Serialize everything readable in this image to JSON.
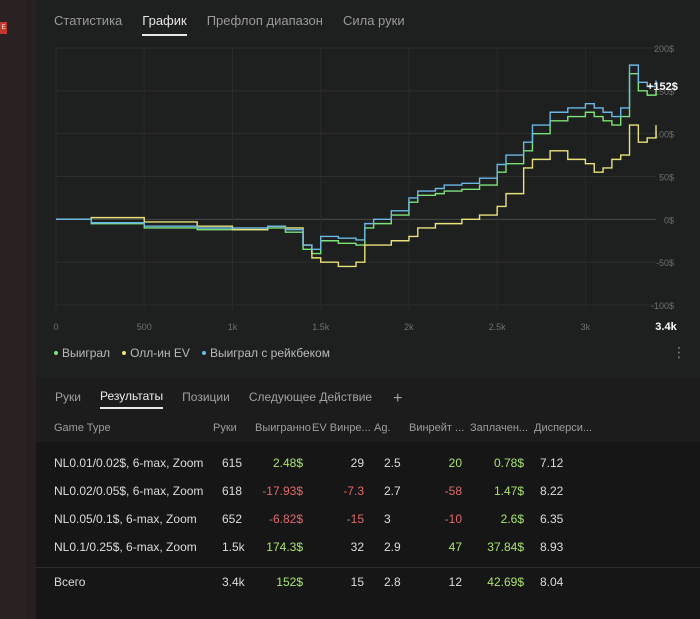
{
  "top_tabs": [
    {
      "label": "Статистика"
    },
    {
      "label": "График",
      "active": true
    },
    {
      "label": "Префлоп диапазон"
    },
    {
      "label": "Сила руки"
    }
  ],
  "left_badge": "E",
  "chart_data": {
    "type": "line",
    "x_ticks": [
      "0",
      "500",
      "1k",
      "1.5k",
      "2k",
      "2.5k",
      "3k",
      "3.4k"
    ],
    "y_ticks": [
      "200$",
      "150$",
      "100$",
      "50$",
      "0$",
      "-50$",
      "-100$"
    ],
    "ylim": [
      -100,
      200
    ],
    "xlim": [
      0,
      3400
    ],
    "end_label": "+152$",
    "grid": true,
    "series": [
      {
        "name": "Выиграл",
        "color": "#7ee27a",
        "x": [
          0,
          200,
          500,
          800,
          1000,
          1200,
          1300,
          1400,
          1450,
          1500,
          1600,
          1700,
          1750,
          1800,
          1900,
          2000,
          2050,
          2150,
          2200,
          2300,
          2400,
          2500,
          2550,
          2650,
          2700,
          2800,
          2900,
          3000,
          3050,
          3100,
          3150,
          3200,
          3250,
          3300,
          3350,
          3400
        ],
        "y": [
          0,
          -5,
          -10,
          -12,
          -12,
          -10,
          -15,
          -35,
          -40,
          -25,
          -28,
          -30,
          -10,
          -5,
          5,
          20,
          28,
          30,
          33,
          35,
          40,
          55,
          65,
          80,
          100,
          115,
          120,
          125,
          120,
          115,
          110,
          120,
          170,
          150,
          145,
          152
        ]
      },
      {
        "name": "Олл-ин EV",
        "color": "#e8e27a",
        "x": [
          0,
          200,
          500,
          800,
          1000,
          1200,
          1300,
          1400,
          1450,
          1500,
          1600,
          1700,
          1750,
          1800,
          1900,
          2000,
          2050,
          2150,
          2200,
          2300,
          2400,
          2500,
          2550,
          2650,
          2700,
          2800,
          2900,
          3000,
          3050,
          3100,
          3150,
          3200,
          3250,
          3300,
          3350,
          3400
        ],
        "y": [
          0,
          2,
          -3,
          -8,
          -12,
          -8,
          -10,
          -30,
          -45,
          -50,
          -55,
          -50,
          -30,
          -30,
          -25,
          -20,
          -10,
          -5,
          -5,
          0,
          5,
          15,
          30,
          60,
          70,
          80,
          70,
          65,
          55,
          60,
          70,
          75,
          110,
          90,
          95,
          110
        ]
      },
      {
        "name": "Выиграл с рейкбеком",
        "color": "#6bb8e6",
        "x": [
          0,
          200,
          500,
          800,
          1000,
          1200,
          1300,
          1400,
          1450,
          1500,
          1600,
          1700,
          1750,
          1800,
          1900,
          2000,
          2050,
          2150,
          2200,
          2300,
          2400,
          2500,
          2550,
          2650,
          2700,
          2800,
          2900,
          3000,
          3050,
          3100,
          3150,
          3200,
          3250,
          3300,
          3350,
          3400
        ],
        "y": [
          0,
          -4,
          -8,
          -10,
          -10,
          -8,
          -12,
          -30,
          -35,
          -20,
          -22,
          -24,
          -5,
          0,
          10,
          25,
          33,
          36,
          40,
          42,
          48,
          64,
          75,
          90,
          110,
          125,
          130,
          135,
          130,
          125,
          120,
          130,
          180,
          160,
          155,
          162
        ]
      }
    ]
  },
  "legend": [
    {
      "label": "Выиграл",
      "color": "#7ee27a"
    },
    {
      "label": "Олл-ин EV",
      "color": "#e8e27a"
    },
    {
      "label": "Выиграл с рейкбеком",
      "color": "#6bb8e6"
    }
  ],
  "sub_tabs": [
    {
      "label": "Руки"
    },
    {
      "label": "Результаты",
      "active": true
    },
    {
      "label": "Позиции"
    },
    {
      "label": "Следующее Действие"
    }
  ],
  "plus_label": "+",
  "kebab": "⋮",
  "table": {
    "headers": [
      "Game Type",
      "Руки",
      "Выигранно",
      "EV Винре...",
      "Ag.",
      "Винрейт ...",
      "Заплачен...",
      "Дисперси..."
    ],
    "rows": [
      {
        "game": "NL0.01/0.02$, 6-max, Zoom",
        "hands": "615",
        "won": "2.48$",
        "ev": "29",
        "ag": "2.5",
        "winrate": "20",
        "paid": "0.78$",
        "disp": "7.12",
        "won_sign": "pos",
        "ev_sign": "",
        "wr_sign": "pos"
      },
      {
        "game": "NL0.02/0.05$, 6-max, Zoom",
        "hands": "618",
        "won": "-17.93$",
        "ev": "-7.3",
        "ag": "2.7",
        "winrate": "-58",
        "paid": "1.47$",
        "disp": "8.22",
        "won_sign": "neg",
        "ev_sign": "neg",
        "wr_sign": "neg"
      },
      {
        "game": "NL0.05/0.1$, 6-max, Zoom",
        "hands": "652",
        "won": "-6.82$",
        "ev": "-15",
        "ag": "3",
        "winrate": "-10",
        "paid": "2.6$",
        "disp": "6.35",
        "won_sign": "neg",
        "ev_sign": "neg",
        "wr_sign": "neg"
      },
      {
        "game": "NL0.1/0.25$, 6-max, Zoom",
        "hands": "1.5k",
        "won": "174.3$",
        "ev": "32",
        "ag": "2.9",
        "winrate": "47",
        "paid": "37.84$",
        "disp": "8.93",
        "won_sign": "pos",
        "ev_sign": "",
        "wr_sign": "pos"
      }
    ],
    "total": {
      "game": "Всего",
      "hands": "3.4k",
      "won": "152$",
      "ev": "15",
      "ag": "2.8",
      "winrate": "12",
      "paid": "42.69$",
      "disp": "8.04"
    }
  }
}
